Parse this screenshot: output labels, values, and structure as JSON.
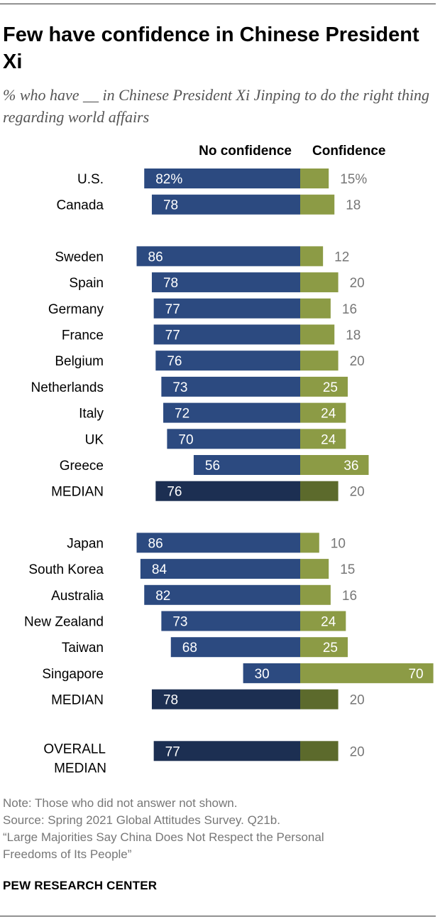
{
  "title": "Few have confidence in Chinese President Xi",
  "subtitle": "% who have __ in Chinese President Xi Jinping to do the right thing regarding world affairs",
  "notes": {
    "note": "Note: Those who did not answer not shown.",
    "source": "Source: Spring 2021 Global Attitudes Survey. Q21b.",
    "report_line1": "“Large Majorities Say China Does Not Respect the Personal",
    "report_line2": "Freedoms of Its People”"
  },
  "brand": "PEW RESEARCH CENTER",
  "colors": {
    "no_confidence": "#2c4a80",
    "confidence": "#8c9b45",
    "median_no_confidence": "#1c2f52",
    "median_confidence": "#5c6a2c",
    "outside_label": "#777777",
    "inside_label": "#ffffff"
  },
  "chart_data": {
    "type": "bar",
    "orientation": "horizontal diverging",
    "legend": [
      "No confidence",
      "Confidence"
    ],
    "series": [
      {
        "name": "No confidence",
        "values": [
          82,
          78,
          86,
          78,
          77,
          77,
          76,
          73,
          72,
          70,
          56,
          76,
          86,
          84,
          82,
          73,
          68,
          30,
          78,
          77
        ]
      },
      {
        "name": "Confidence",
        "values": [
          15,
          18,
          12,
          20,
          16,
          18,
          20,
          25,
          24,
          24,
          36,
          20,
          10,
          15,
          16,
          24,
          25,
          70,
          20,
          20
        ]
      }
    ],
    "categories": [
      "U.S.",
      "Canada",
      "Sweden",
      "Spain",
      "Germany",
      "France",
      "Belgium",
      "Netherlands",
      "Italy",
      "UK",
      "Greece",
      "MEDIAN",
      "Japan",
      "South Korea",
      "Australia",
      "New Zealand",
      "Taiwan",
      "Singapore",
      "MEDIAN",
      "OVERALL MEDIAN"
    ],
    "groups": [
      {
        "rows": [
          {
            "label": "U.S.",
            "no_confidence": 82,
            "confidence": 15,
            "no_label": "82%",
            "conf_label": "15%"
          },
          {
            "label": "Canada",
            "no_confidence": 78,
            "confidence": 18,
            "no_label": "78",
            "conf_label": "18"
          }
        ]
      },
      {
        "rows": [
          {
            "label": "Sweden",
            "no_confidence": 86,
            "confidence": 12,
            "no_label": "86",
            "conf_label": "12"
          },
          {
            "label": "Spain",
            "no_confidence": 78,
            "confidence": 20,
            "no_label": "78",
            "conf_label": "20"
          },
          {
            "label": "Germany",
            "no_confidence": 77,
            "confidence": 16,
            "no_label": "77",
            "conf_label": "16"
          },
          {
            "label": "France",
            "no_confidence": 77,
            "confidence": 18,
            "no_label": "77",
            "conf_label": "18"
          },
          {
            "label": "Belgium",
            "no_confidence": 76,
            "confidence": 20,
            "no_label": "76",
            "conf_label": "20"
          },
          {
            "label": "Netherlands",
            "no_confidence": 73,
            "confidence": 25,
            "no_label": "73",
            "conf_label": "25"
          },
          {
            "label": "Italy",
            "no_confidence": 72,
            "confidence": 24,
            "no_label": "72",
            "conf_label": "24"
          },
          {
            "label": "UK",
            "no_confidence": 70,
            "confidence": 24,
            "no_label": "70",
            "conf_label": "24"
          },
          {
            "label": "Greece",
            "no_confidence": 56,
            "confidence": 36,
            "no_label": "56",
            "conf_label": "36"
          },
          {
            "label": "MEDIAN",
            "no_confidence": 76,
            "confidence": 20,
            "no_label": "76",
            "conf_label": "20",
            "median": true
          }
        ]
      },
      {
        "rows": [
          {
            "label": "Japan",
            "no_confidence": 86,
            "confidence": 10,
            "no_label": "86",
            "conf_label": "10"
          },
          {
            "label": "South Korea",
            "no_confidence": 84,
            "confidence": 15,
            "no_label": "84",
            "conf_label": "15"
          },
          {
            "label": "Australia",
            "no_confidence": 82,
            "confidence": 16,
            "no_label": "82",
            "conf_label": "16"
          },
          {
            "label": "New Zealand",
            "no_confidence": 73,
            "confidence": 24,
            "no_label": "73",
            "conf_label": "24"
          },
          {
            "label": "Taiwan",
            "no_confidence": 68,
            "confidence": 25,
            "no_label": "68",
            "conf_label": "25"
          },
          {
            "label": "Singapore",
            "no_confidence": 30,
            "confidence": 70,
            "no_label": "30",
            "conf_label": "70"
          },
          {
            "label": "MEDIAN",
            "no_confidence": 78,
            "confidence": 20,
            "no_label": "78",
            "conf_label": "20",
            "median": true
          }
        ]
      },
      {
        "rows": [
          {
            "label": "OVERALL MEDIAN",
            "label_lines": [
              "OVERALL",
              "MEDIAN"
            ],
            "no_confidence": 77,
            "confidence": 20,
            "no_label": "77",
            "conf_label": "20",
            "median": true
          }
        ]
      }
    ],
    "units": "%",
    "grid": false
  }
}
